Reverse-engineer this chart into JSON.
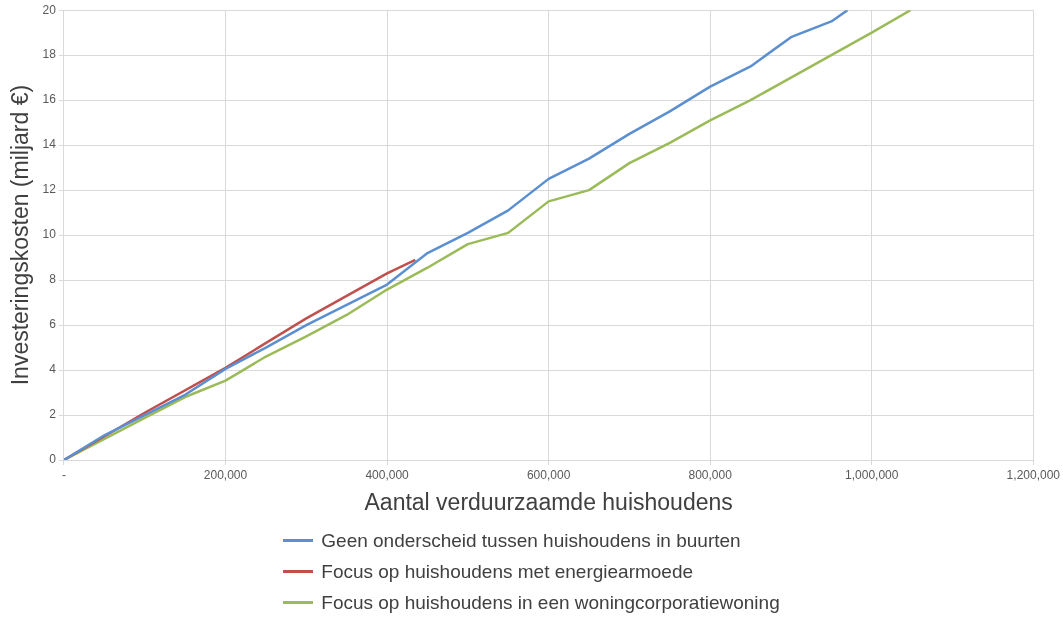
{
  "chart_data": {
    "type": "line",
    "xlabel": "Aantal verduurzaamde huishoudens",
    "ylabel": "Investeringskosten (miljard €)",
    "xlim": [
      0,
      1200000
    ],
    "xticks": [
      {
        "value": 0,
        "label": "-"
      },
      {
        "value": 200000,
        "label": "200,000"
      },
      {
        "value": 400000,
        "label": "400,000"
      },
      {
        "value": 600000,
        "label": "600,000"
      },
      {
        "value": 800000,
        "label": "800,000"
      },
      {
        "value": 1000000,
        "label": "1,000,000"
      },
      {
        "value": 1200000,
        "label": "1,200,000"
      }
    ],
    "ylim": [
      0,
      20
    ],
    "yticks": [
      0,
      2,
      4,
      6,
      8,
      10,
      12,
      14,
      16,
      18,
      20
    ],
    "grid": true,
    "legend": "bottom",
    "series": [
      {
        "name": "Geen onderscheid tussen huishoudens in buurten",
        "color": "#5b8fd0",
        "x": [
          0,
          50000,
          100000,
          150000,
          200000,
          250000,
          300000,
          350000,
          400000,
          450000,
          500000,
          550000,
          600000,
          650000,
          700000,
          750000,
          800000,
          850000,
          900000,
          950000,
          970000
        ],
        "values": [
          0,
          1.1,
          2.0,
          2.9,
          4.05,
          5.0,
          6.0,
          6.9,
          7.8,
          9.2,
          10.1,
          11.1,
          12.5,
          13.4,
          14.5,
          15.5,
          16.6,
          17.5,
          18.8,
          19.5,
          20
        ]
      },
      {
        "name": "Focus op huishoudens met energiearmoede",
        "color": "#c0504d",
        "x": [
          0,
          100000,
          200000,
          300000,
          400000,
          435000
        ],
        "values": [
          0,
          2.1,
          4.1,
          6.3,
          8.3,
          8.9
        ]
      },
      {
        "name": "Focus op huishoudens in een woningcorporatiewoning",
        "color": "#9bbb59",
        "x": [
          0,
          100000,
          150000,
          200000,
          250000,
          300000,
          350000,
          400000,
          450000,
          500000,
          550000,
          600000,
          650000,
          700000,
          750000,
          800000,
          850000,
          900000,
          950000,
          1000000,
          1048000
        ],
        "values": [
          0,
          1.87,
          2.8,
          3.53,
          4.6,
          5.5,
          6.45,
          7.58,
          8.55,
          9.6,
          10.1,
          11.5,
          12.0,
          13.2,
          14.1,
          15.1,
          16.0,
          17.0,
          18.0,
          19.0,
          20
        ]
      }
    ]
  }
}
